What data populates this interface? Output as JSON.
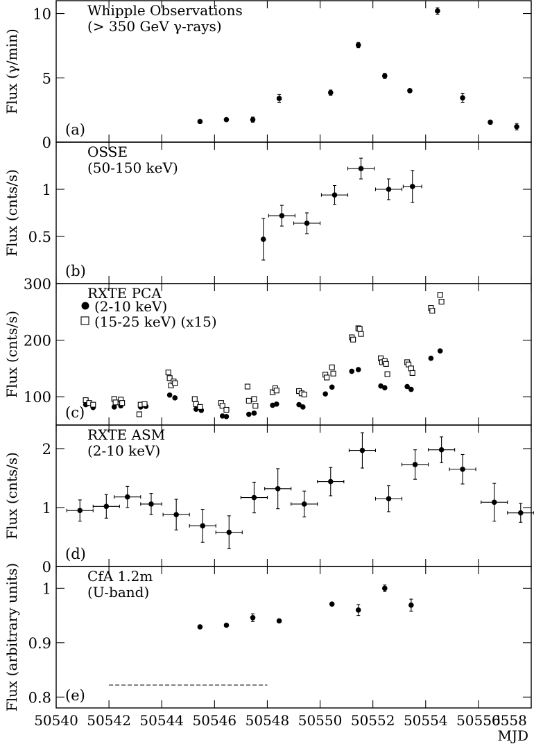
{
  "chart_data": {
    "type": "scatter",
    "shared_x": {
      "range": [
        50540,
        50558
      ],
      "ticks": [
        50540,
        50542,
        50544,
        50546,
        50548,
        50550,
        50552,
        50554,
        50556,
        50558
      ],
      "tick_labels": [
        "50540",
        "50542",
        "50544",
        "50546",
        "50548",
        "50550",
        "50552",
        "50554",
        "50556",
        "50558"
      ],
      "xlabel": "MJD"
    },
    "panels": [
      {
        "id": "a",
        "panel_label": "(a)",
        "title": "Whipple Observations",
        "subtitle": "(> 350 GeV γ-rays)",
        "ylabel": "Flux (γ/min)",
        "ylim": [
          0,
          11
        ],
        "yticks": [
          0,
          5,
          10
        ],
        "ytick_labels": [
          "0",
          "5",
          "10"
        ],
        "series": [
          {
            "marker": "filled-circle",
            "points": [
              {
                "x": 50545.45,
                "y": 1.6,
                "yerr": 0.1
              },
              {
                "x": 50546.45,
                "y": 1.75,
                "yerr": 0.1
              },
              {
                "x": 50547.45,
                "y": 1.75,
                "yerr": 0.2
              },
              {
                "x": 50548.45,
                "y": 3.4,
                "yerr": 0.3
              },
              {
                "x": 50550.4,
                "y": 3.85,
                "yerr": 0.2
              },
              {
                "x": 50551.45,
                "y": 7.55,
                "yerr": 0.2
              },
              {
                "x": 50552.45,
                "y": 5.15,
                "yerr": 0.2
              },
              {
                "x": 50553.4,
                "y": 4.0,
                "yerr": 0.15
              },
              {
                "x": 50554.45,
                "y": 10.2,
                "yerr": 0.25
              },
              {
                "x": 50555.4,
                "y": 3.45,
                "yerr": 0.35
              },
              {
                "x": 50556.45,
                "y": 1.55,
                "yerr": 0.15
              },
              {
                "x": 50557.45,
                "y": 1.2,
                "yerr": 0.25
              }
            ]
          }
        ]
      },
      {
        "id": "b",
        "panel_label": "(b)",
        "title": "OSSE",
        "subtitle": "(50-150 keV)",
        "ylabel": "Flux (cnts/s)",
        "ylim": [
          0,
          1.5
        ],
        "yticks": [
          0.5,
          1
        ],
        "ytick_labels": [
          "0.5",
          "1"
        ],
        "series": [
          {
            "marker": "filled-circle",
            "points": [
              {
                "x": 50547.85,
                "y": 0.47,
                "yerr": 0.22,
                "xerr": 0.05
              },
              {
                "x": 50548.55,
                "y": 0.72,
                "yerr": 0.11,
                "xerr": 0.5
              },
              {
                "x": 50549.5,
                "y": 0.64,
                "yerr": 0.11,
                "xerr": 0.5
              },
              {
                "x": 50550.55,
                "y": 0.94,
                "yerr": 0.1,
                "xerr": 0.5
              },
              {
                "x": 50551.55,
                "y": 1.22,
                "yerr": 0.11,
                "xerr": 0.5
              },
              {
                "x": 50552.6,
                "y": 1.0,
                "yerr": 0.11,
                "xerr": 0.5
              },
              {
                "x": 50553.5,
                "y": 1.03,
                "yerr": 0.17,
                "xerr": 0.35
              }
            ]
          }
        ]
      },
      {
        "id": "c",
        "panel_label": "(c)",
        "title": "RXTE PCA",
        "ylabel": "Flux (cnts/s)",
        "ylim": [
          50,
          300
        ],
        "yticks": [
          100,
          200,
          300
        ],
        "ytick_labels": [
          "100",
          "200",
          "300"
        ],
        "legend": {
          "placement": "top-left",
          "entries": [
            {
              "marker": "filled-circle",
              "label": "(2-10 keV)"
            },
            {
              "marker": "open-square",
              "label": "(15-25 keV)  (x15)"
            }
          ]
        },
        "series": [
          {
            "label": "(2-10 keV)",
            "marker": "filled-circle",
            "points": [
              {
                "x": 50541.12,
                "y": 86
              },
              {
                "x": 50541.2,
                "y": 88
              },
              {
                "x": 50541.4,
                "y": 81
              },
              {
                "x": 50542.2,
                "y": 82
              },
              {
                "x": 50542.45,
                "y": 84
              },
              {
                "x": 50543.2,
                "y": 82
              },
              {
                "x": 50543.4,
                "y": 83
              },
              {
                "x": 50544.3,
                "y": 103
              },
              {
                "x": 50544.5,
                "y": 98
              },
              {
                "x": 50545.3,
                "y": 78
              },
              {
                "x": 50545.5,
                "y": 76
              },
              {
                "x": 50546.3,
                "y": 66
              },
              {
                "x": 50546.45,
                "y": 65
              },
              {
                "x": 50547.3,
                "y": 69
              },
              {
                "x": 50547.5,
                "y": 71
              },
              {
                "x": 50548.2,
                "y": 85
              },
              {
                "x": 50548.35,
                "y": 87
              },
              {
                "x": 50549.2,
                "y": 86
              },
              {
                "x": 50549.35,
                "y": 82
              },
              {
                "x": 50550.2,
                "y": 105
              },
              {
                "x": 50550.45,
                "y": 117
              },
              {
                "x": 50551.2,
                "y": 145
              },
              {
                "x": 50551.45,
                "y": 148
              },
              {
                "x": 50552.3,
                "y": 119
              },
              {
                "x": 50552.45,
                "y": 116
              },
              {
                "x": 50553.3,
                "y": 118
              },
              {
                "x": 50553.45,
                "y": 113
              },
              {
                "x": 50554.2,
                "y": 168
              },
              {
                "x": 50554.55,
                "y": 181
              }
            ]
          },
          {
            "label": "(15-25 keV)  (x15)",
            "marker": "open-square",
            "points": [
              {
                "x": 50541.12,
                "y": 94
              },
              {
                "x": 50541.25,
                "y": 89
              },
              {
                "x": 50541.4,
                "y": 86
              },
              {
                "x": 50542.2,
                "y": 96
              },
              {
                "x": 50542.25,
                "y": 90
              },
              {
                "x": 50542.45,
                "y": 95
              },
              {
                "x": 50542.5,
                "y": 89
              },
              {
                "x": 50543.15,
                "y": 69
              },
              {
                "x": 50543.2,
                "y": 86
              },
              {
                "x": 50543.35,
                "y": 87
              },
              {
                "x": 50544.25,
                "y": 143
              },
              {
                "x": 50544.3,
                "y": 133
              },
              {
                "x": 50544.35,
                "y": 120
              },
              {
                "x": 50544.45,
                "y": 127
              },
              {
                "x": 50544.5,
                "y": 124
              },
              {
                "x": 50545.25,
                "y": 96
              },
              {
                "x": 50545.3,
                "y": 87
              },
              {
                "x": 50545.45,
                "y": 82
              },
              {
                "x": 50546.25,
                "y": 89
              },
              {
                "x": 50546.3,
                "y": 84
              },
              {
                "x": 50546.45,
                "y": 77
              },
              {
                "x": 50547.25,
                "y": 118
              },
              {
                "x": 50547.3,
                "y": 93
              },
              {
                "x": 50547.5,
                "y": 96
              },
              {
                "x": 50547.55,
                "y": 84
              },
              {
                "x": 50548.2,
                "y": 108
              },
              {
                "x": 50548.3,
                "y": 115
              },
              {
                "x": 50548.35,
                "y": 111
              },
              {
                "x": 50549.2,
                "y": 110
              },
              {
                "x": 50549.3,
                "y": 106
              },
              {
                "x": 50549.4,
                "y": 104
              },
              {
                "x": 50550.2,
                "y": 139
              },
              {
                "x": 50550.25,
                "y": 134
              },
              {
                "x": 50550.45,
                "y": 152
              },
              {
                "x": 50550.5,
                "y": 141
              },
              {
                "x": 50551.2,
                "y": 205
              },
              {
                "x": 50551.25,
                "y": 201
              },
              {
                "x": 50551.45,
                "y": 221
              },
              {
                "x": 50551.5,
                "y": 220
              },
              {
                "x": 50551.55,
                "y": 211
              },
              {
                "x": 50552.3,
                "y": 168
              },
              {
                "x": 50552.35,
                "y": 161
              },
              {
                "x": 50552.45,
                "y": 163
              },
              {
                "x": 50552.5,
                "y": 158
              },
              {
                "x": 50552.55,
                "y": 140
              },
              {
                "x": 50553.3,
                "y": 161
              },
              {
                "x": 50553.35,
                "y": 157
              },
              {
                "x": 50553.45,
                "y": 150
              },
              {
                "x": 50553.5,
                "y": 142
              },
              {
                "x": 50554.2,
                "y": 257
              },
              {
                "x": 50554.25,
                "y": 252
              },
              {
                "x": 50554.55,
                "y": 280
              },
              {
                "x": 50554.6,
                "y": 268
              }
            ]
          }
        ]
      },
      {
        "id": "d",
        "panel_label": "(d)",
        "title": "RXTE ASM",
        "subtitle": "(2-10 keV)",
        "ylabel": "Flux (cnts/s)",
        "ylim": [
          0,
          2.4
        ],
        "yticks": [
          0,
          1,
          2
        ],
        "ytick_labels": [
          "0",
          "1",
          "2"
        ],
        "series": [
          {
            "marker": "filled-circle",
            "points": [
              {
                "x": 50540.9,
                "y": 0.95,
                "yerr": 0.18,
                "xerr": 0.5
              },
              {
                "x": 50541.9,
                "y": 1.02,
                "yerr": 0.2,
                "xerr": 0.5
              },
              {
                "x": 50542.7,
                "y": 1.18,
                "yerr": 0.18,
                "xerr": 0.5
              },
              {
                "x": 50543.6,
                "y": 1.06,
                "yerr": 0.18,
                "xerr": 0.4
              },
              {
                "x": 50544.55,
                "y": 0.88,
                "yerr": 0.26,
                "xerr": 0.5
              },
              {
                "x": 50545.55,
                "y": 0.69,
                "yerr": 0.28,
                "xerr": 0.5
              },
              {
                "x": 50546.55,
                "y": 0.58,
                "yerr": 0.28,
                "xerr": 0.5
              },
              {
                "x": 50547.5,
                "y": 1.17,
                "yerr": 0.26,
                "xerr": 0.5
              },
              {
                "x": 50548.4,
                "y": 1.32,
                "yerr": 0.34,
                "xerr": 0.5
              },
              {
                "x": 50549.4,
                "y": 1.06,
                "yerr": 0.22,
                "xerr": 0.5
              },
              {
                "x": 50550.4,
                "y": 1.44,
                "yerr": 0.24,
                "xerr": 0.5
              },
              {
                "x": 50551.6,
                "y": 1.97,
                "yerr": 0.3,
                "xerr": 0.5
              },
              {
                "x": 50552.6,
                "y": 1.15,
                "yerr": 0.22,
                "xerr": 0.5
              },
              {
                "x": 50553.6,
                "y": 1.73,
                "yerr": 0.25,
                "xerr": 0.5
              },
              {
                "x": 50554.6,
                "y": 1.98,
                "yerr": 0.22,
                "xerr": 0.5
              },
              {
                "x": 50555.4,
                "y": 1.65,
                "yerr": 0.25,
                "xerr": 0.5
              },
              {
                "x": 50556.6,
                "y": 1.09,
                "yerr": 0.32,
                "xerr": 0.5
              },
              {
                "x": 50557.6,
                "y": 0.91,
                "yerr": 0.16,
                "xerr": 0.5
              }
            ]
          }
        ]
      },
      {
        "id": "e",
        "panel_label": "(e)",
        "title": "CfA 1.2m",
        "subtitle": "(U-band)",
        "ylabel": "Flux (arbitrary units)",
        "ylim": [
          0.78,
          1.04
        ],
        "yticks": [
          0.8,
          0.9,
          1
        ],
        "ytick_labels": [
          "0.8",
          "0.9",
          "1"
        ],
        "reference_line": {
          "style": "dashed",
          "x_from": 50542,
          "x_to": 50548,
          "y": 0.822
        },
        "series": [
          {
            "marker": "filled-circle",
            "points": [
              {
                "x": 50545.45,
                "y": 0.929,
                "yerr": 0.002
              },
              {
                "x": 50546.45,
                "y": 0.932,
                "yerr": 0.002
              },
              {
                "x": 50547.45,
                "y": 0.946,
                "yerr": 0.007
              },
              {
                "x": 50548.45,
                "y": 0.94,
                "yerr": 0.002
              },
              {
                "x": 50550.45,
                "y": 0.971,
                "yerr": 0.002
              },
              {
                "x": 50551.45,
                "y": 0.96,
                "yerr": 0.01
              },
              {
                "x": 50552.45,
                "y": 1.0,
                "yerr": 0.006
              },
              {
                "x": 50553.45,
                "y": 0.969,
                "yerr": 0.011
              }
            ]
          }
        ]
      }
    ]
  }
}
